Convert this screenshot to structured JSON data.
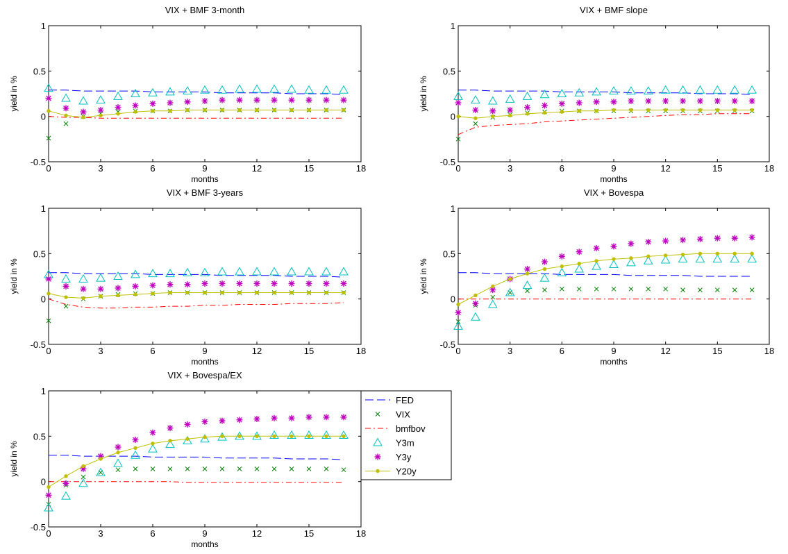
{
  "figure": {
    "legend_entries": [
      "FED",
      "VIX",
      "bmfbov",
      "Y3m",
      "Y3y",
      "Y20y"
    ],
    "series_styles": {
      "FED": {
        "color": "#0000ff",
        "line": "dashed",
        "marker": "none"
      },
      "VIX": {
        "color": "#008000",
        "line": "none",
        "marker": "x"
      },
      "bmfbov": {
        "color": "#ff0000",
        "line": "dashdot",
        "marker": "none"
      },
      "Y3m": {
        "color": "#00bfbf",
        "line": "none",
        "marker": "triangle"
      },
      "Y3y": {
        "color": "#bf00bf",
        "line": "none",
        "marker": "star"
      },
      "Y20y": {
        "color": "#bfbf00",
        "line": "solid",
        "marker": "dot"
      }
    }
  },
  "chart_data": [
    {
      "type": "line",
      "title": "VIX + BMF 3-month",
      "xlabel": "months",
      "ylabel": "yield in %",
      "xlim": [
        0,
        18
      ],
      "ylim": [
        -0.5,
        1
      ],
      "xticks": [
        "0",
        "3",
        "6",
        "9",
        "12",
        "15",
        "18"
      ],
      "yticks": [
        "-0.5",
        "0",
        "0.5",
        "1"
      ],
      "x": [
        0,
        1,
        2,
        3,
        4,
        5,
        6,
        7,
        8,
        9,
        10,
        11,
        12,
        13,
        14,
        15,
        16,
        17
      ],
      "series": [
        {
          "name": "FED",
          "values": [
            0.29,
            0.29,
            0.28,
            0.28,
            0.28,
            0.28,
            0.27,
            0.27,
            0.27,
            0.27,
            0.26,
            0.26,
            0.26,
            0.26,
            0.25,
            0.25,
            0.25,
            0.24
          ]
        },
        {
          "name": "VIX",
          "values": [
            -0.24,
            -0.08,
            0.0,
            0.03,
            0.05,
            0.06,
            0.06,
            0.06,
            0.07,
            0.07,
            0.07,
            0.07,
            0.07,
            0.07,
            0.07,
            0.07,
            0.07,
            0.07
          ]
        },
        {
          "name": "bmfbov",
          "values": [
            0.0,
            -0.01,
            -0.01,
            -0.02,
            -0.02,
            -0.02,
            -0.02,
            -0.02,
            -0.02,
            -0.02,
            -0.02,
            -0.02,
            -0.02,
            -0.02,
            -0.02,
            -0.02,
            -0.02,
            -0.02
          ]
        },
        {
          "name": "Y3m",
          "values": [
            0.31,
            0.2,
            0.17,
            0.18,
            0.22,
            0.25,
            0.26,
            0.27,
            0.28,
            0.29,
            0.29,
            0.3,
            0.3,
            0.3,
            0.3,
            0.29,
            0.29,
            0.29
          ]
        },
        {
          "name": "Y3y",
          "values": [
            0.2,
            0.09,
            0.05,
            0.07,
            0.1,
            0.12,
            0.14,
            0.15,
            0.16,
            0.17,
            0.18,
            0.18,
            0.18,
            0.18,
            0.18,
            0.18,
            0.18,
            0.18
          ]
        },
        {
          "name": "Y20y",
          "values": [
            0.06,
            0.01,
            -0.01,
            0.01,
            0.03,
            0.05,
            0.06,
            0.06,
            0.07,
            0.07,
            0.07,
            0.07,
            0.07,
            0.07,
            0.07,
            0.07,
            0.07,
            0.07
          ]
        }
      ]
    },
    {
      "type": "line",
      "title": "VIX + BMF slope",
      "xlabel": "months",
      "ylabel": "yield in %",
      "xlim": [
        0,
        18
      ],
      "ylim": [
        -0.5,
        1
      ],
      "xticks": [
        "0",
        "3",
        "6",
        "9",
        "12",
        "15",
        "18"
      ],
      "yticks": [
        "-0.5",
        "0",
        "0.5",
        "1"
      ],
      "x": [
        0,
        1,
        2,
        3,
        4,
        5,
        6,
        7,
        8,
        9,
        10,
        11,
        12,
        13,
        14,
        15,
        16,
        17
      ],
      "series": [
        {
          "name": "FED",
          "values": [
            0.29,
            0.29,
            0.28,
            0.28,
            0.28,
            0.28,
            0.27,
            0.27,
            0.27,
            0.27,
            0.26,
            0.26,
            0.26,
            0.26,
            0.25,
            0.25,
            0.25,
            0.24
          ]
        },
        {
          "name": "VIX",
          "values": [
            -0.25,
            -0.08,
            -0.01,
            0.02,
            0.04,
            0.05,
            0.06,
            0.06,
            0.06,
            0.06,
            0.06,
            0.06,
            0.06,
            0.06,
            0.06,
            0.06,
            0.06,
            0.06
          ]
        },
        {
          "name": "bmfbov",
          "values": [
            -0.2,
            -0.12,
            -0.1,
            -0.09,
            -0.08,
            -0.06,
            -0.05,
            -0.04,
            -0.03,
            -0.02,
            -0.01,
            0.0,
            0.01,
            0.02,
            0.02,
            0.03,
            0.03,
            0.03
          ]
        },
        {
          "name": "Y3m",
          "values": [
            0.22,
            0.18,
            0.17,
            0.19,
            0.22,
            0.24,
            0.25,
            0.26,
            0.27,
            0.28,
            0.28,
            0.28,
            0.29,
            0.29,
            0.29,
            0.29,
            0.29,
            0.29
          ]
        },
        {
          "name": "Y3y",
          "values": [
            0.15,
            0.07,
            0.06,
            0.07,
            0.1,
            0.12,
            0.14,
            0.15,
            0.16,
            0.16,
            0.17,
            0.17,
            0.17,
            0.17,
            0.17,
            0.17,
            0.17,
            0.17
          ]
        },
        {
          "name": "Y20y",
          "values": [
            0.0,
            -0.02,
            0.0,
            0.01,
            0.03,
            0.04,
            0.05,
            0.06,
            0.06,
            0.07,
            0.07,
            0.07,
            0.07,
            0.07,
            0.07,
            0.07,
            0.07,
            0.07
          ]
        }
      ]
    },
    {
      "type": "line",
      "title": "VIX + BMF 3-years",
      "xlabel": "months",
      "ylabel": "yield in %",
      "xlim": [
        0,
        18
      ],
      "ylim": [
        -0.5,
        1
      ],
      "xticks": [
        "0",
        "3",
        "6",
        "9",
        "12",
        "15",
        "18"
      ],
      "yticks": [
        "-0.5",
        "0",
        "0.5",
        "1"
      ],
      "x": [
        0,
        1,
        2,
        3,
        4,
        5,
        6,
        7,
        8,
        9,
        10,
        11,
        12,
        13,
        14,
        15,
        16,
        17
      ],
      "series": [
        {
          "name": "FED",
          "values": [
            0.29,
            0.29,
            0.28,
            0.28,
            0.28,
            0.28,
            0.27,
            0.27,
            0.27,
            0.27,
            0.26,
            0.26,
            0.26,
            0.26,
            0.25,
            0.25,
            0.25,
            0.24
          ]
        },
        {
          "name": "VIX",
          "values": [
            -0.24,
            -0.08,
            0.0,
            0.03,
            0.05,
            0.06,
            0.06,
            0.07,
            0.07,
            0.07,
            0.07,
            0.07,
            0.07,
            0.07,
            0.07,
            0.07,
            0.07,
            0.07
          ]
        },
        {
          "name": "bmfbov",
          "values": [
            0.0,
            -0.06,
            -0.09,
            -0.1,
            -0.1,
            -0.09,
            -0.09,
            -0.08,
            -0.08,
            -0.07,
            -0.07,
            -0.06,
            -0.06,
            -0.06,
            -0.05,
            -0.05,
            -0.05,
            -0.04
          ]
        },
        {
          "name": "Y3m",
          "values": [
            0.27,
            0.22,
            0.22,
            0.23,
            0.25,
            0.27,
            0.28,
            0.28,
            0.29,
            0.29,
            0.3,
            0.3,
            0.3,
            0.3,
            0.3,
            0.3,
            0.3,
            0.3
          ]
        },
        {
          "name": "Y3y",
          "values": [
            0.22,
            0.14,
            0.11,
            0.11,
            0.12,
            0.14,
            0.15,
            0.16,
            0.16,
            0.17,
            0.17,
            0.17,
            0.17,
            0.17,
            0.17,
            0.17,
            0.17,
            0.17
          ]
        },
        {
          "name": "Y20y",
          "values": [
            0.06,
            0.02,
            0.01,
            0.03,
            0.04,
            0.05,
            0.06,
            0.07,
            0.07,
            0.07,
            0.07,
            0.07,
            0.07,
            0.07,
            0.07,
            0.07,
            0.07,
            0.07
          ]
        }
      ]
    },
    {
      "type": "line",
      "title": "VIX + Bovespa",
      "xlabel": "months",
      "ylabel": "yield in %",
      "xlim": [
        0,
        18
      ],
      "ylim": [
        -0.5,
        1
      ],
      "xticks": [
        "0",
        "3",
        "6",
        "9",
        "12",
        "15",
        "18"
      ],
      "yticks": [
        "-0.5",
        "0",
        "0.5",
        "1"
      ],
      "x": [
        0,
        1,
        2,
        3,
        4,
        5,
        6,
        7,
        8,
        9,
        10,
        11,
        12,
        13,
        14,
        15,
        16,
        17
      ],
      "series": [
        {
          "name": "FED",
          "values": [
            0.29,
            0.29,
            0.28,
            0.28,
            0.28,
            0.28,
            0.27,
            0.27,
            0.27,
            0.27,
            0.26,
            0.26,
            0.26,
            0.26,
            0.25,
            0.25,
            0.25,
            0.25
          ]
        },
        {
          "name": "VIX",
          "values": [
            -0.25,
            -0.07,
            0.02,
            0.07,
            0.09,
            0.1,
            0.11,
            0.11,
            0.11,
            0.11,
            0.11,
            0.11,
            0.11,
            0.1,
            0.1,
            0.1,
            0.1,
            0.1
          ]
        },
        {
          "name": "bmfbov",
          "values": [
            0.0,
            0.0,
            0.0,
            0.0,
            0.0,
            0.0,
            0.0,
            0.0,
            0.0,
            0.0,
            0.0,
            0.0,
            0.0,
            0.0,
            0.0,
            0.0,
            0.0,
            0.0
          ]
        },
        {
          "name": "Y3m",
          "values": [
            -0.3,
            -0.2,
            -0.06,
            0.07,
            0.15,
            0.23,
            0.29,
            0.33,
            0.36,
            0.38,
            0.4,
            0.42,
            0.43,
            0.44,
            0.44,
            0.44,
            0.44,
            0.44
          ]
        },
        {
          "name": "Y3y",
          "values": [
            -0.15,
            -0.05,
            0.1,
            0.22,
            0.33,
            0.41,
            0.47,
            0.52,
            0.56,
            0.58,
            0.61,
            0.63,
            0.64,
            0.65,
            0.66,
            0.67,
            0.67,
            0.68
          ]
        },
        {
          "name": "Y20y",
          "values": [
            -0.06,
            0.04,
            0.14,
            0.22,
            0.28,
            0.33,
            0.36,
            0.39,
            0.42,
            0.44,
            0.45,
            0.47,
            0.48,
            0.49,
            0.5,
            0.5,
            0.5,
            0.5
          ]
        }
      ]
    },
    {
      "type": "line",
      "title": "VIX + Bovespa/EX",
      "xlabel": "months",
      "ylabel": "yield in %",
      "xlim": [
        0,
        18
      ],
      "ylim": [
        -0.5,
        1
      ],
      "xticks": [
        "0",
        "3",
        "6",
        "9",
        "12",
        "15",
        "18"
      ],
      "yticks": [
        "-0.5",
        "0",
        "0.5",
        "1"
      ],
      "x": [
        0,
        1,
        2,
        3,
        4,
        5,
        6,
        7,
        8,
        9,
        10,
        11,
        12,
        13,
        14,
        15,
        16,
        17
      ],
      "series": [
        {
          "name": "FED",
          "values": [
            0.29,
            0.29,
            0.28,
            0.28,
            0.28,
            0.28,
            0.27,
            0.27,
            0.27,
            0.27,
            0.26,
            0.26,
            0.26,
            0.26,
            0.25,
            0.25,
            0.25,
            0.24
          ]
        },
        {
          "name": "VIX",
          "values": [
            -0.25,
            -0.04,
            0.05,
            0.1,
            0.13,
            0.14,
            0.14,
            0.14,
            0.14,
            0.14,
            0.14,
            0.14,
            0.14,
            0.14,
            0.14,
            0.14,
            0.14,
            0.13
          ]
        },
        {
          "name": "bmfbov",
          "values": [
            0.0,
            0.0,
            0.0,
            0.0,
            0.0,
            0.0,
            0.0,
            0.0,
            -0.01,
            -0.01,
            -0.01,
            -0.01,
            -0.01,
            -0.01,
            -0.01,
            -0.01,
            -0.01,
            -0.01
          ]
        },
        {
          "name": "Y3m",
          "values": [
            -0.29,
            -0.16,
            -0.02,
            0.1,
            0.2,
            0.29,
            0.36,
            0.41,
            0.45,
            0.47,
            0.49,
            0.5,
            0.5,
            0.51,
            0.51,
            0.51,
            0.51,
            0.51
          ]
        },
        {
          "name": "Y3y",
          "values": [
            -0.15,
            -0.02,
            0.14,
            0.28,
            0.38,
            0.46,
            0.54,
            0.59,
            0.63,
            0.66,
            0.67,
            0.68,
            0.69,
            0.7,
            0.7,
            0.71,
            0.71,
            0.71
          ]
        },
        {
          "name": "Y20y",
          "values": [
            -0.06,
            0.06,
            0.17,
            0.25,
            0.32,
            0.37,
            0.42,
            0.45,
            0.47,
            0.49,
            0.5,
            0.5,
            0.5,
            0.5,
            0.5,
            0.5,
            0.5,
            0.5
          ]
        }
      ]
    }
  ]
}
